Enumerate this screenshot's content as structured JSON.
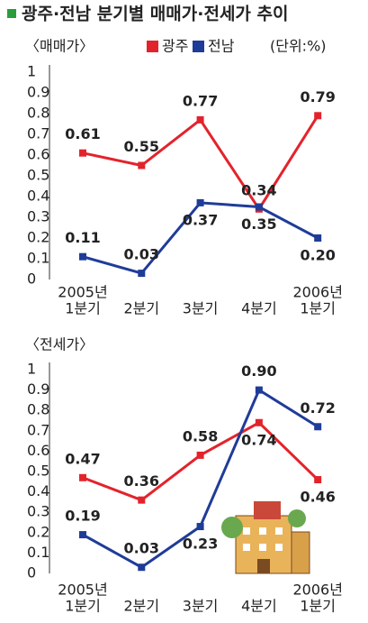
{
  "title": "광주·전남 분기별 매매가·전세가 추이",
  "unit": "(단위:%)",
  "chart_data": [
    {
      "type": "line",
      "subtitle": "〈매매가〉",
      "categories": [
        [
          "2005년",
          "1분기"
        ],
        [
          "2분기"
        ],
        [
          "3분기"
        ],
        [
          "4분기"
        ],
        [
          "2006년",
          "1분기"
        ]
      ],
      "series": [
        {
          "name": "광주",
          "color": "#e3232c",
          "values": [
            0.61,
            0.55,
            0.77,
            0.34,
            0.79
          ],
          "value_labels": [
            "0.61",
            "0.55",
            "0.77",
            "0.34",
            "0.79"
          ]
        },
        {
          "name": "전남",
          "color": "#1f3c98",
          "values": [
            0.11,
            0.03,
            0.37,
            0.35,
            0.2
          ],
          "value_labels": [
            "0.11",
            "0.03",
            "0.37",
            "0.35",
            "0.20"
          ]
        }
      ],
      "ylim": [
        0,
        1
      ],
      "yticks": [
        0,
        0.1,
        0.2,
        0.3,
        0.4,
        0.5,
        0.6,
        0.7,
        0.8,
        0.9,
        1
      ],
      "grid": false
    },
    {
      "type": "line",
      "subtitle": "〈전세가〉",
      "categories": [
        [
          "2005년",
          "1분기"
        ],
        [
          "2분기"
        ],
        [
          "3분기"
        ],
        [
          "4분기"
        ],
        [
          "2006년",
          "1분기"
        ]
      ],
      "series": [
        {
          "name": "광주",
          "color": "#e3232c",
          "values": [
            0.47,
            0.36,
            0.58,
            0.74,
            0.46
          ],
          "value_labels": [
            "0.47",
            "0.36",
            "0.58",
            "0.74",
            "0.46"
          ]
        },
        {
          "name": "전남",
          "color": "#1f3c98",
          "values": [
            0.19,
            0.03,
            0.23,
            0.9,
            0.72
          ],
          "value_labels": [
            "0.19",
            "0.03",
            "0.23",
            "0.90",
            "0.72"
          ]
        }
      ],
      "ylim": [
        0,
        1
      ],
      "yticks": [
        0,
        0.1,
        0.2,
        0.3,
        0.4,
        0.5,
        0.6,
        0.7,
        0.8,
        0.9,
        1
      ],
      "grid": false
    }
  ]
}
